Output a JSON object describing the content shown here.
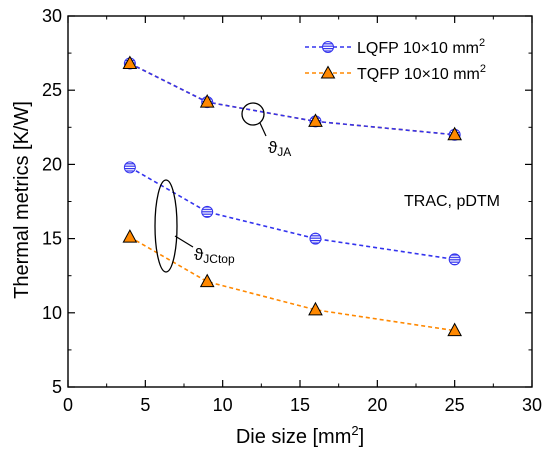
{
  "chart_data": {
    "type": "line",
    "xlabel": "Die size [mm",
    "xlabel_sup": "2",
    "xlabel_tail": "]",
    "ylabel": "Thermal metrics [K/W]",
    "xlim": [
      0,
      30
    ],
    "ylim": [
      5,
      30
    ],
    "x_ticks": [
      0,
      5,
      10,
      15,
      20,
      25,
      30
    ],
    "y_ticks": [
      5,
      10,
      15,
      20,
      25,
      30
    ],
    "x": [
      4,
      9,
      16,
      25
    ],
    "legend_position": "top-right",
    "grid": false,
    "series": [
      {
        "name": "LQFP 10×10 mm",
        "name_sup": "2",
        "color": "#3333ee",
        "marker": "circle",
        "group": "JA",
        "values": [
          26.8,
          24.2,
          22.9,
          22.0
        ]
      },
      {
        "name": "TQFP 10×10 mm",
        "name_sup": "2",
        "color": "#ff8800",
        "marker": "triangle",
        "group": "JA",
        "values": [
          26.8,
          24.2,
          22.9,
          22.0
        ]
      },
      {
        "name": "LQFP 10×10 mm",
        "name_sup": "2",
        "color": "#3333ee",
        "marker": "circle",
        "group": "JCtop",
        "values": [
          19.8,
          16.8,
          15.0,
          13.6
        ]
      },
      {
        "name": "TQFP 10×10 mm",
        "name_sup": "2",
        "color": "#ff8800",
        "marker": "triangle",
        "group": "JCtop",
        "values": [
          15.1,
          12.1,
          10.2,
          8.8
        ]
      }
    ],
    "annotations": {
      "ja_symbol": "ϑ",
      "ja_sub": "JA",
      "jc_symbol": "ϑ",
      "jc_sub": "JCtop",
      "method": "TRAC, pDTM"
    }
  }
}
